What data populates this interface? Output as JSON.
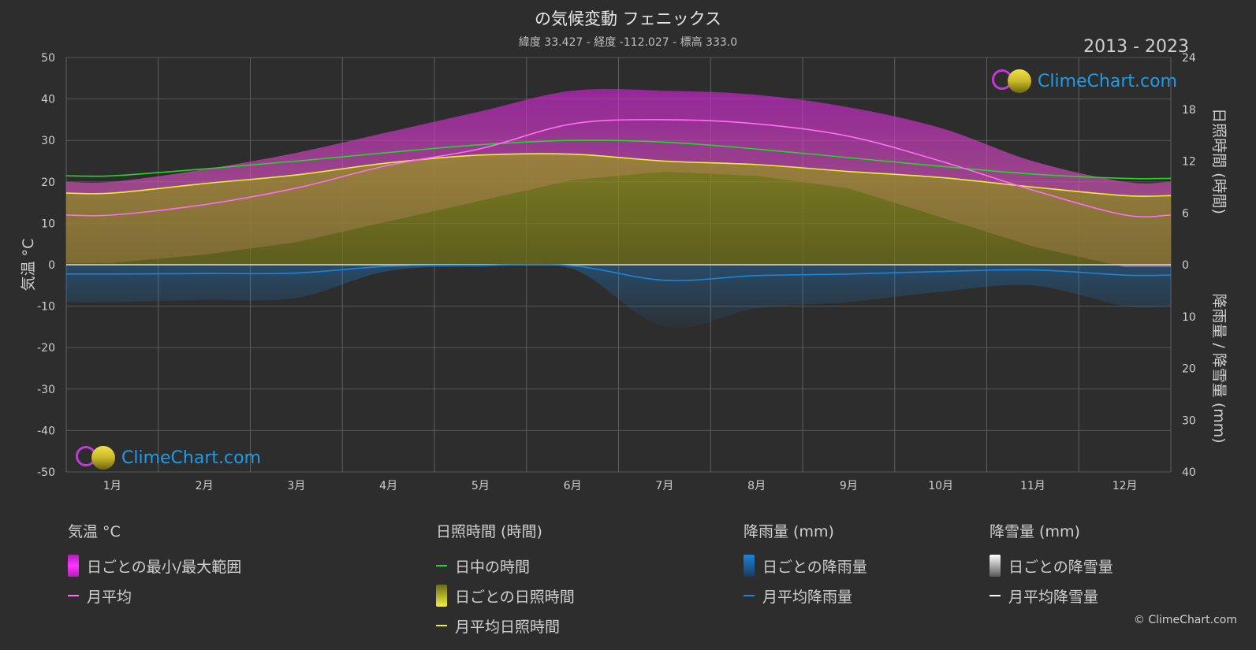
{
  "header": {
    "title": "の気候変動 フェニックス",
    "subtitle": "緯度 33.427 - 経度 -112.027 - 標高 333.0",
    "period": "2013 - 2023"
  },
  "branding": {
    "logo_text": "ClimeChart.com",
    "copyright": "© ClimeChart.com"
  },
  "colors": {
    "background": "#2d2d2d",
    "temp_range": "#d024d6",
    "temp_avg": "#ff6ef5",
    "daylight": "#22d922",
    "sunshine_fill": "#8a8a1c",
    "sunshine_avg": "#ecec40",
    "rain": "#1d83d8",
    "snow": "#ffffff"
  },
  "legend": {
    "temperature": {
      "heading": "気温 °C",
      "range": "日ごとの最小/最大範囲",
      "avg": "月平均"
    },
    "sunshine": {
      "heading": "日照時間 (時間)",
      "daylight": "日中の時間",
      "daily": "日ごとの日照時間",
      "avg": "月平均日照時間"
    },
    "rain": {
      "heading": "降雨量 (mm)",
      "daily": "日ごとの降雨量",
      "avg": "月平均降雨量"
    },
    "snow": {
      "heading": "降雪量 (mm)",
      "daily": "日ごとの降雪量",
      "avg": "月平均降雪量"
    }
  },
  "chart_data": {
    "type": "area",
    "categories": [
      "1月",
      "2月",
      "3月",
      "4月",
      "5月",
      "6月",
      "7月",
      "8月",
      "9月",
      "10月",
      "11月",
      "12月"
    ],
    "y_left": {
      "label": "気温 °C",
      "range": [
        -50,
        50
      ],
      "ticks": [
        50,
        40,
        30,
        20,
        10,
        0,
        -10,
        -20,
        -30,
        -40,
        -50
      ]
    },
    "y_right_top": {
      "label": "日照時間 (時間)",
      "range": [
        0,
        24
      ],
      "ticks": [
        24,
        18,
        12,
        6,
        0
      ]
    },
    "y_right_bottom": {
      "label": "降雨量 / 降雪量 (mm)",
      "range": [
        0,
        40
      ],
      "ticks": [
        0,
        10,
        20,
        30,
        40
      ]
    },
    "grid": true,
    "series": [
      {
        "name": "月平均",
        "axis": "temperature",
        "values": [
          12,
          14.5,
          18.5,
          24,
          28,
          34,
          35,
          34,
          31,
          25,
          18,
          12
        ]
      },
      {
        "name": "日ごとの最小/最大範囲 (min)",
        "axis": "temperature",
        "values": [
          9,
          11,
          14,
          19,
          24,
          29,
          31,
          30,
          27,
          20,
          13,
          8
        ]
      },
      {
        "name": "日ごとの最小/最大範囲 (max)",
        "axis": "temperature",
        "values": [
          20,
          23,
          27,
          32,
          37,
          42,
          42,
          41,
          38,
          33,
          25,
          20
        ]
      },
      {
        "name": "日中の時間",
        "axis": "sunshine",
        "values": [
          10.3,
          11.1,
          12.0,
          13.0,
          13.9,
          14.4,
          14.2,
          13.4,
          12.4,
          11.4,
          10.5,
          10.0
        ]
      },
      {
        "name": "月平均日照時間",
        "axis": "sunshine",
        "values": [
          8.3,
          9.4,
          10.4,
          11.8,
          12.7,
          12.8,
          12.0,
          11.6,
          10.8,
          10.1,
          9.0,
          8.0
        ]
      },
      {
        "name": "月平均降雨量",
        "axis": "rain",
        "values": [
          1.8,
          1.7,
          1.6,
          0.3,
          0.1,
          0.2,
          3.0,
          2.1,
          1.8,
          1.3,
          1.0,
          2.0
        ]
      },
      {
        "name": "月平均降雪量",
        "axis": "snow",
        "values": [
          0,
          0,
          0,
          0,
          0,
          0,
          0,
          0,
          0,
          0,
          0,
          0
        ]
      }
    ]
  }
}
